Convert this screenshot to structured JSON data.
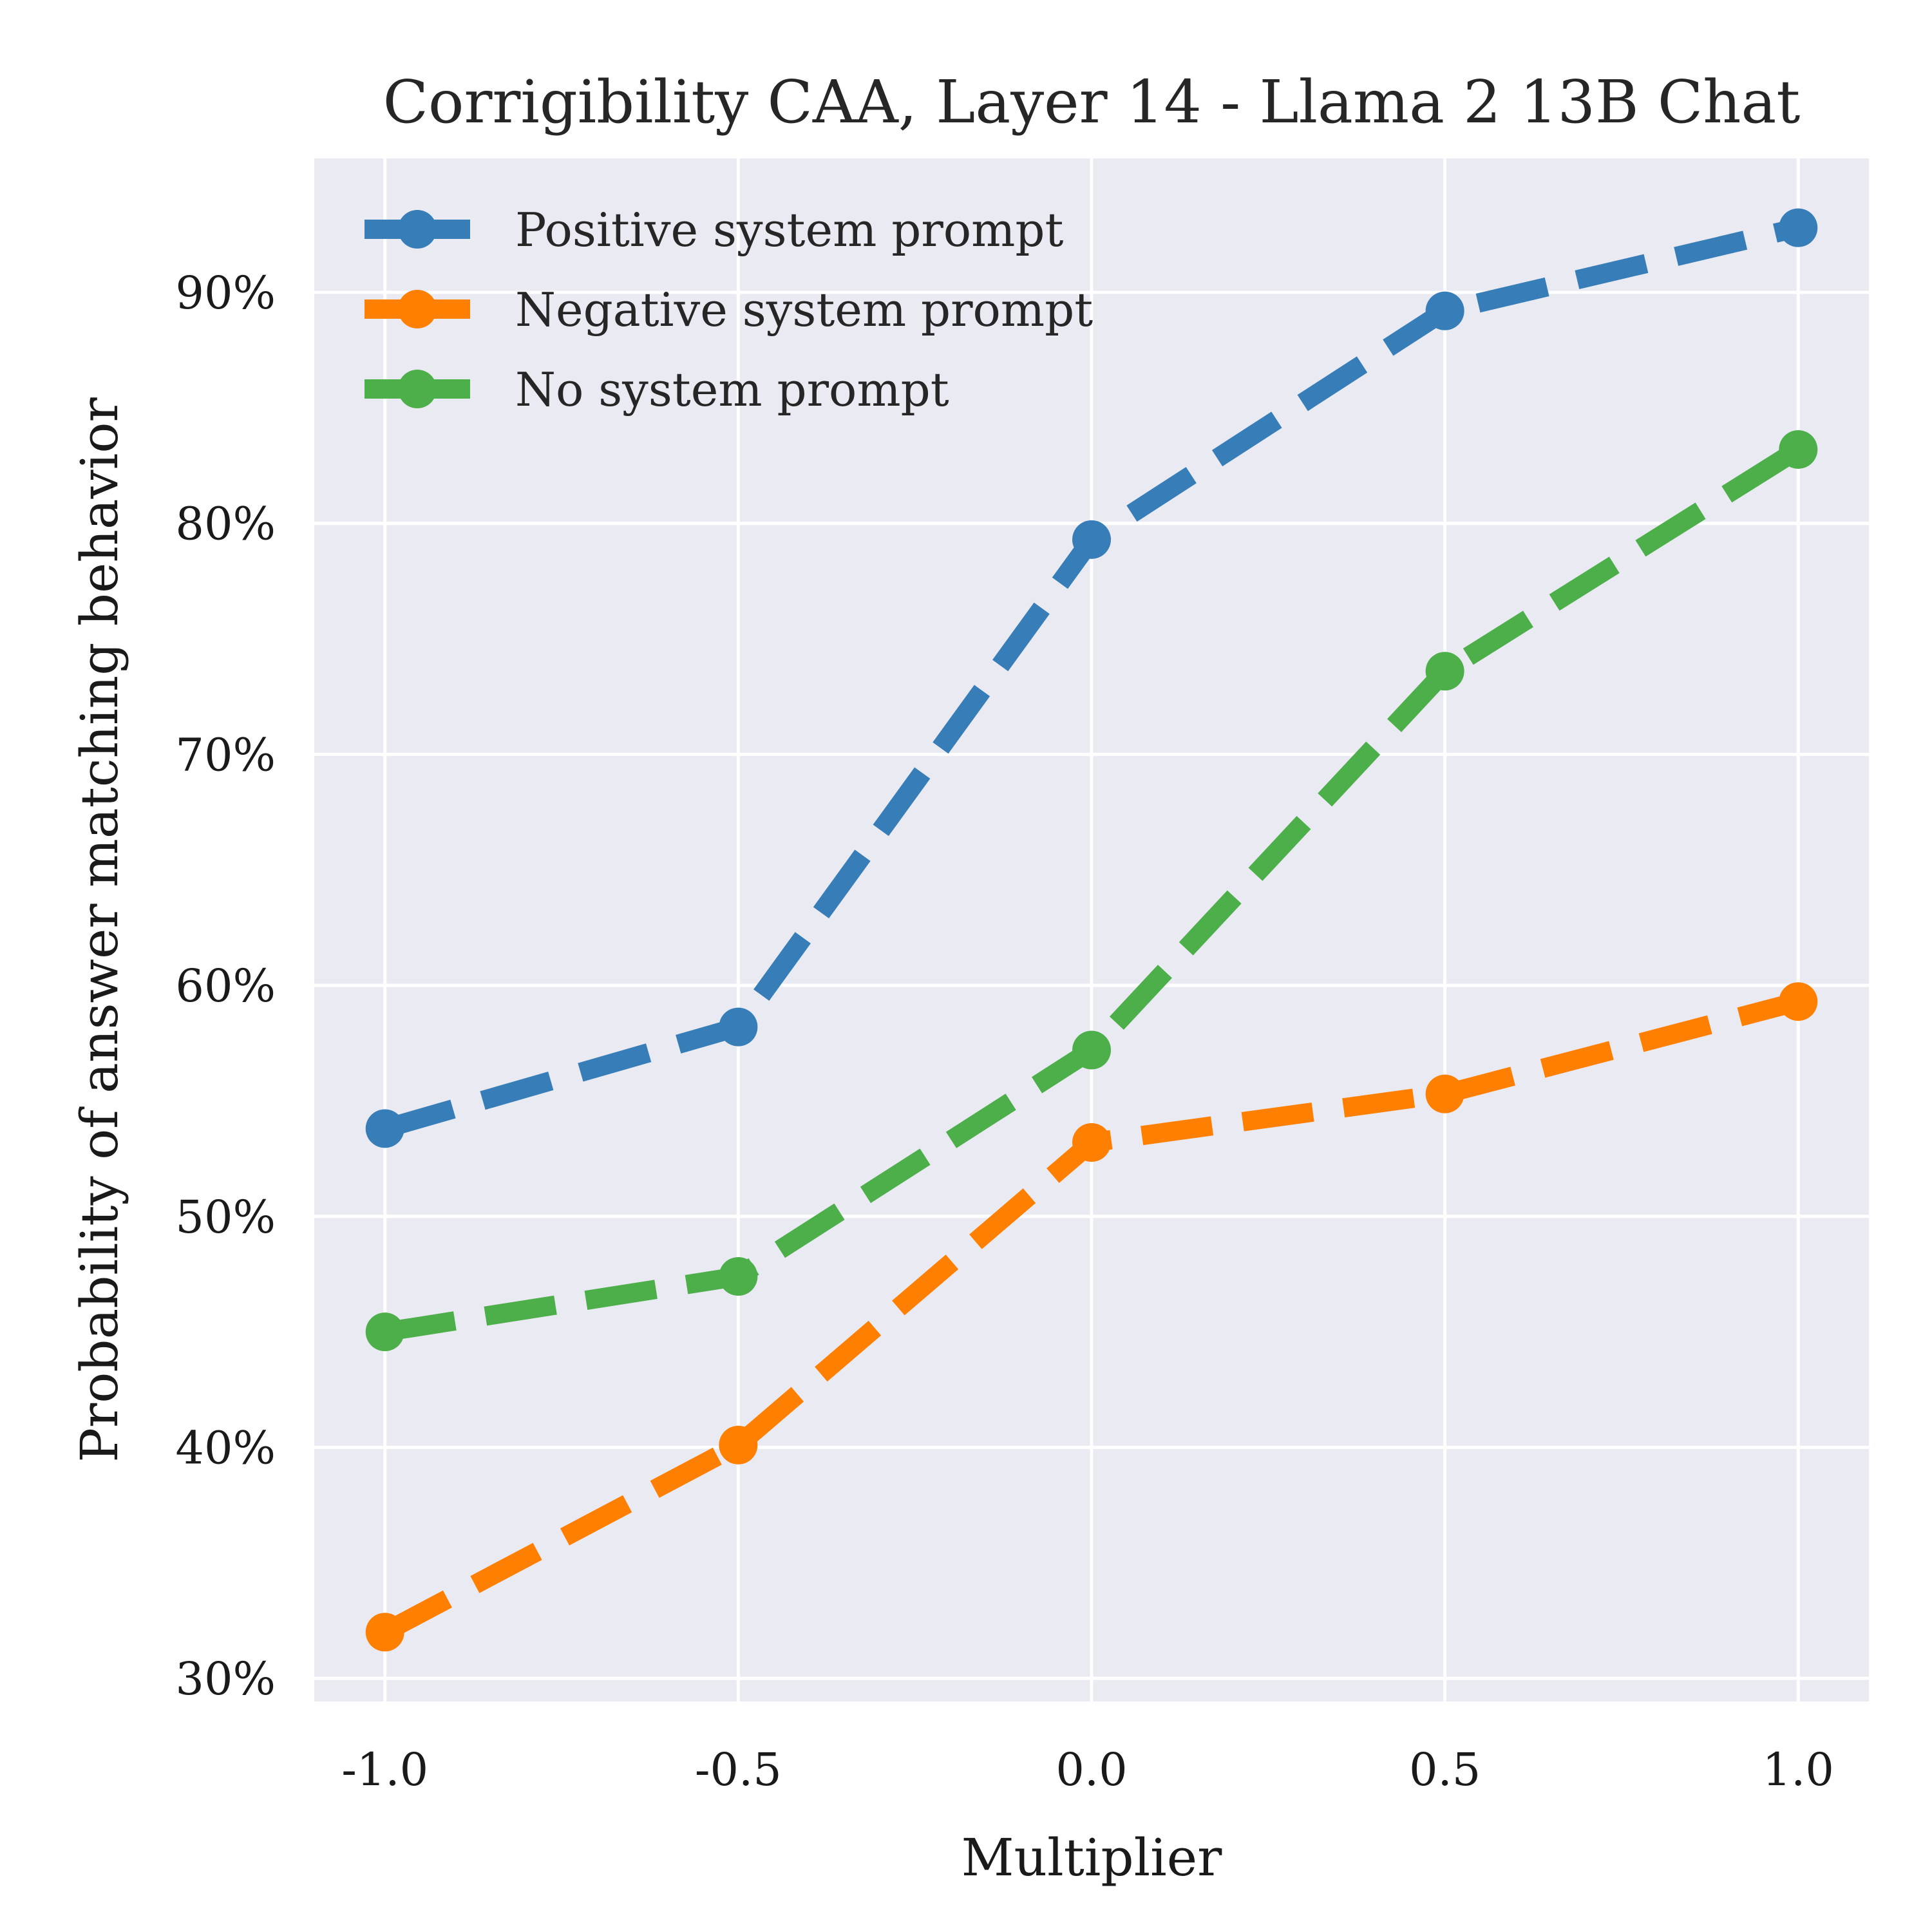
{
  "chart_data": {
    "type": "line",
    "title": "Corrigibility CAA, Layer 14 - Llama 2 13B Chat",
    "xlabel": "Multiplier",
    "ylabel": "Probability of answer matching behavior",
    "x": [
      -1.0,
      -0.5,
      0.0,
      0.5,
      1.0
    ],
    "x_tick_labels": [
      "-1.0",
      "-0.5",
      "0.0",
      "0.5",
      "1.0"
    ],
    "y_ticks": [
      30,
      40,
      50,
      60,
      70,
      80,
      90
    ],
    "y_tick_labels": [
      "30%",
      "40%",
      "50%",
      "60%",
      "70%",
      "80%",
      "90%"
    ],
    "xlim": [
      -1.1,
      1.1
    ],
    "ylim": [
      29,
      95.8
    ],
    "grid": true,
    "legend_position": "top-left",
    "line_style": "dashed",
    "series": [
      {
        "name": "Positive system prompt",
        "color": "#377eb8",
        "values": [
          53.8,
          58.2,
          79.3,
          89.2,
          92.8
        ]
      },
      {
        "name": "Negative system prompt",
        "color": "#ff7f00",
        "values": [
          32.0,
          40.1,
          53.2,
          55.3,
          59.3
        ]
      },
      {
        "name": "No system prompt",
        "color": "#4daf4a",
        "values": [
          45.0,
          47.4,
          57.2,
          73.6,
          83.2
        ]
      }
    ]
  }
}
